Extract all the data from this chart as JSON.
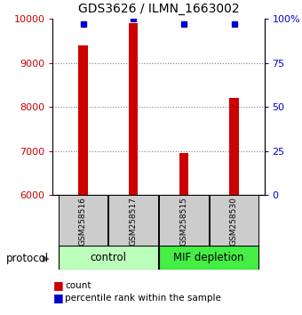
{
  "title": "GDS3626 / ILMN_1663002",
  "samples": [
    "GSM258516",
    "GSM258517",
    "GSM258515",
    "GSM258530"
  ],
  "counts": [
    9400,
    9900,
    6950,
    8200
  ],
  "percentile_ranks": [
    97,
    100,
    97,
    97
  ],
  "ylim": [
    6000,
    10000
  ],
  "yticks_left": [
    6000,
    7000,
    8000,
    9000,
    10000
  ],
  "yticks_right": [
    0,
    25,
    50,
    75,
    100
  ],
  "bar_color": "#cc0000",
  "dot_color": "#0000cc",
  "groups": [
    {
      "label": "control",
      "samples": [
        0,
        1
      ],
      "color": "#bbffbb"
    },
    {
      "label": "MIF depletion",
      "samples": [
        2,
        3
      ],
      "color": "#44ee44"
    }
  ],
  "left_tick_color": "#cc0000",
  "right_tick_color": "#0000cc",
  "title_fontsize": 10,
  "tick_fontsize": 8,
  "bar_width": 0.18,
  "protocol_label": "protocol"
}
